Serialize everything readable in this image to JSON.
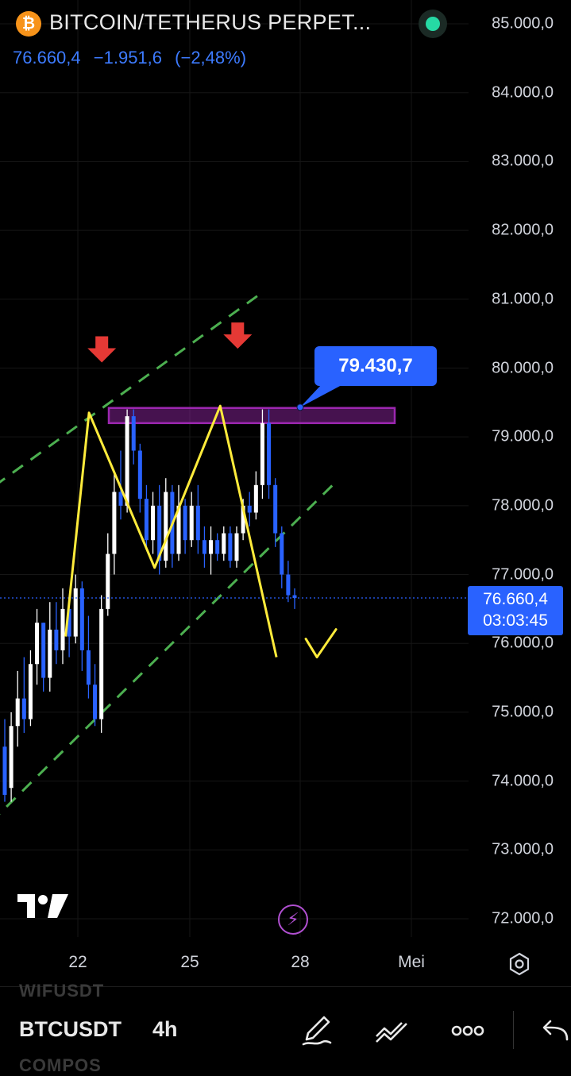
{
  "header": {
    "coin_glyph": "₿",
    "title": "BITCOIN/TETHERUS PERPET...",
    "last_price": "76.660,4",
    "change": "−1.951,6",
    "change_pct": "(−2,48%)"
  },
  "price_scale": [
    "85.000,0",
    "84.000,0",
    "83.000,0",
    "82.000,0",
    "81.000,0",
    "80.000,0",
    "79.000,0",
    "78.000,0",
    "77.000,0",
    "76.000,0",
    "75.000,0",
    "74.000,0",
    "73.000,0",
    "72.000,0"
  ],
  "time_scale": [
    "22",
    "25",
    "28",
    "Mei"
  ],
  "last_price_tag": {
    "price": "76.660,4",
    "countdown": "03:03:45"
  },
  "callout": {
    "label": "79.430,7",
    "value": 79430.7
  },
  "bottom_bar": {
    "symbol": "BTCUSDT",
    "interval": "4h",
    "ghost_above": "WIFUSDT",
    "ghost_below": "COMPOS"
  },
  "icons": [
    "bitcoin-icon",
    "status-dot-icon",
    "tradingview-logo-icon",
    "flash-icon",
    "settings-icon",
    "pencil-icon",
    "drawing-tools-icon",
    "more-icon",
    "undo-icon"
  ],
  "colors": {
    "up": "#ffffff",
    "down": "#2962ff",
    "accent": "#2962ff",
    "channel": "#4caf50",
    "pattern": "#ffeb3b",
    "zone": "#9c27b0",
    "arrow": "#e53935"
  },
  "chart_data": {
    "type": "candlestick",
    "interval": "4h",
    "ylim": [
      71500,
      85300
    ],
    "x_labels": [
      "22",
      "25",
      "28",
      "Mei"
    ],
    "candles": [
      [
        74500,
        74900,
        73700,
        73800
      ],
      [
        73900,
        75000,
        73700,
        74800
      ],
      [
        74800,
        75600,
        74500,
        75200
      ],
      [
        75200,
        75800,
        74700,
        74900
      ],
      [
        74900,
        75900,
        74800,
        75700
      ],
      [
        75700,
        76500,
        75400,
        76300
      ],
      [
        76300,
        76300,
        75300,
        75500
      ],
      [
        75500,
        76600,
        75300,
        76200
      ],
      [
        76200,
        76600,
        75700,
        75900
      ],
      [
        75900,
        76800,
        75700,
        76500
      ],
      [
        76500,
        76700,
        75800,
        76100
      ],
      [
        76100,
        77000,
        76000,
        76800
      ],
      [
        76800,
        76900,
        75600,
        75900
      ],
      [
        75900,
        76400,
        75200,
        75400
      ],
      [
        75400,
        75700,
        74800,
        74900
      ],
      [
        74900,
        76700,
        74700,
        76500
      ],
      [
        76500,
        77600,
        76400,
        77300
      ],
      [
        77300,
        78500,
        77000,
        78200
      ],
      [
        78200,
        78800,
        77800,
        78000
      ],
      [
        78000,
        79400,
        77900,
        79300
      ],
      [
        79300,
        79400,
        78600,
        78800
      ],
      [
        78800,
        78900,
        77900,
        78100
      ],
      [
        78100,
        78300,
        77400,
        77500
      ],
      [
        77500,
        78200,
        77300,
        78000
      ],
      [
        78000,
        78300,
        77000,
        77200
      ],
      [
        77200,
        78400,
        77100,
        78200
      ],
      [
        78200,
        78300,
        77100,
        77300
      ],
      [
        77300,
        78300,
        77200,
        78000
      ],
      [
        78000,
        78100,
        77300,
        77500
      ],
      [
        77500,
        78200,
        77400,
        78000
      ],
      [
        78000,
        78300,
        77300,
        77500
      ],
      [
        77500,
        77700,
        77100,
        77300
      ],
      [
        77300,
        77700,
        77000,
        77500
      ],
      [
        77500,
        77600,
        77200,
        77300
      ],
      [
        77300,
        77700,
        77200,
        77600
      ],
      [
        77600,
        77700,
        77100,
        77200
      ],
      [
        77200,
        77700,
        77100,
        77600
      ],
      [
        77600,
        78100,
        77500,
        78000
      ],
      [
        78000,
        78200,
        77700,
        77900
      ],
      [
        77900,
        78500,
        77800,
        78300
      ],
      [
        78300,
        79400,
        78100,
        79200
      ],
      [
        79200,
        79400,
        78100,
        78300
      ],
      [
        78300,
        78400,
        77400,
        77600
      ],
      [
        77600,
        77700,
        76800,
        77000
      ],
      [
        77000,
        77200,
        76600,
        76700
      ],
      [
        76700,
        76800,
        76500,
        76660
      ]
    ],
    "last_price": 76660.4,
    "resistance_zone": [
      79200,
      79420
    ],
    "channel_upper": [
      [
        -0.05,
        78100
      ],
      [
        0.56,
        81100
      ]
    ],
    "channel_lower": [
      [
        -0.02,
        73400
      ],
      [
        0.71,
        78300
      ]
    ],
    "pattern_path": [
      [
        0.14,
        76100
      ],
      [
        0.19,
        79350
      ],
      [
        0.33,
        77100
      ],
      [
        0.47,
        79450
      ],
      [
        0.59,
        75800
      ]
    ],
    "marker_arrows": [
      [
        0.18,
        80000
      ],
      [
        0.47,
        80200
      ]
    ]
  }
}
